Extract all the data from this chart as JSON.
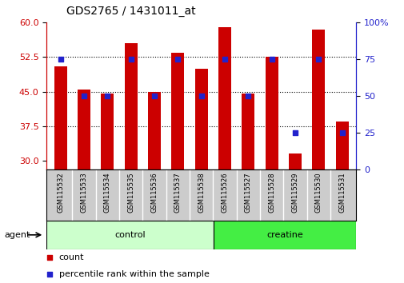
{
  "title": "GDS2765 / 1431011_at",
  "samples": [
    "GSM115532",
    "GSM115533",
    "GSM115534",
    "GSM115535",
    "GSM115536",
    "GSM115537",
    "GSM115538",
    "GSM115526",
    "GSM115527",
    "GSM115528",
    "GSM115529",
    "GSM115530",
    "GSM115531"
  ],
  "counts": [
    50.5,
    45.5,
    44.5,
    55.5,
    45.0,
    53.5,
    50.0,
    59.0,
    44.5,
    52.5,
    31.5,
    58.5,
    38.5
  ],
  "percentile_right": [
    75,
    50,
    50,
    75,
    50,
    75,
    50,
    75,
    50,
    75,
    25,
    75,
    25
  ],
  "ylim_left": [
    28,
    60
  ],
  "ylim_right": [
    0,
    100
  ],
  "yticks_left": [
    30,
    37.5,
    45,
    52.5,
    60
  ],
  "yticks_right": [
    0,
    25,
    50,
    75,
    100
  ],
  "hlines": [
    37.5,
    45.0,
    52.5
  ],
  "bar_color": "#cc0000",
  "dot_color": "#2222cc",
  "control_color": "#ccffcc",
  "creatine_color": "#44ee44",
  "sample_box_color": "#cccccc",
  "control_label": "control",
  "creatine_label": "creatine",
  "agent_label": "agent",
  "n_control": 7,
  "n_creatine": 6,
  "bar_width": 0.55,
  "background_color": "#ffffff",
  "tick_color_left": "#cc0000",
  "tick_color_right": "#2222cc",
  "legend_count": "count",
  "legend_pct": "percentile rank within the sample",
  "title_fontsize": 10,
  "tick_fontsize": 8,
  "sample_fontsize": 6,
  "label_fontsize": 8,
  "dot_size": 25
}
